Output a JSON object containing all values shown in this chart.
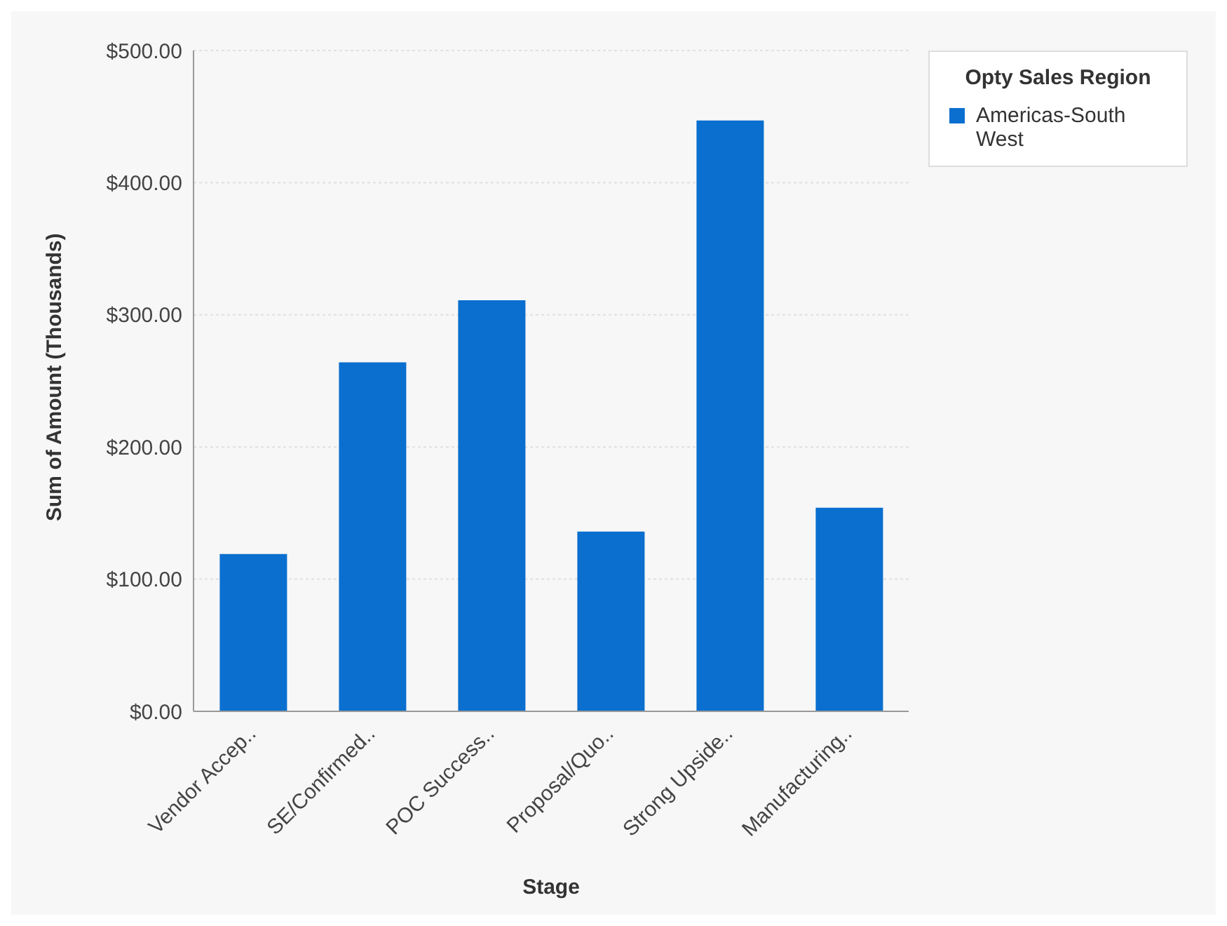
{
  "chart_data": {
    "type": "bar",
    "xlabel": "Stage",
    "ylabel": "Sum of Amount (Thousands)",
    "legend_title": "Opty Sales Region",
    "categories": [
      "Vendor Accep..",
      "SE/Confirmed..",
      "POC Success..",
      "Proposal/Quo..",
      "Strong Upside..",
      "Manufacturing.."
    ],
    "series": [
      {
        "name": "Americas-South West",
        "color": "#0a6fcf",
        "values": [
          119,
          264,
          311,
          136,
          447,
          154
        ]
      }
    ],
    "ylim": [
      0,
      500
    ],
    "yticks": [
      {
        "value": 0,
        "label": "$0.00"
      },
      {
        "value": 100,
        "label": "$100.00"
      },
      {
        "value": 200,
        "label": "$200.00"
      },
      {
        "value": 300,
        "label": "$300.00"
      },
      {
        "value": 400,
        "label": "$400.00"
      },
      {
        "value": 500,
        "label": "$500.00"
      }
    ],
    "grid": "y",
    "legend": "top right"
  }
}
